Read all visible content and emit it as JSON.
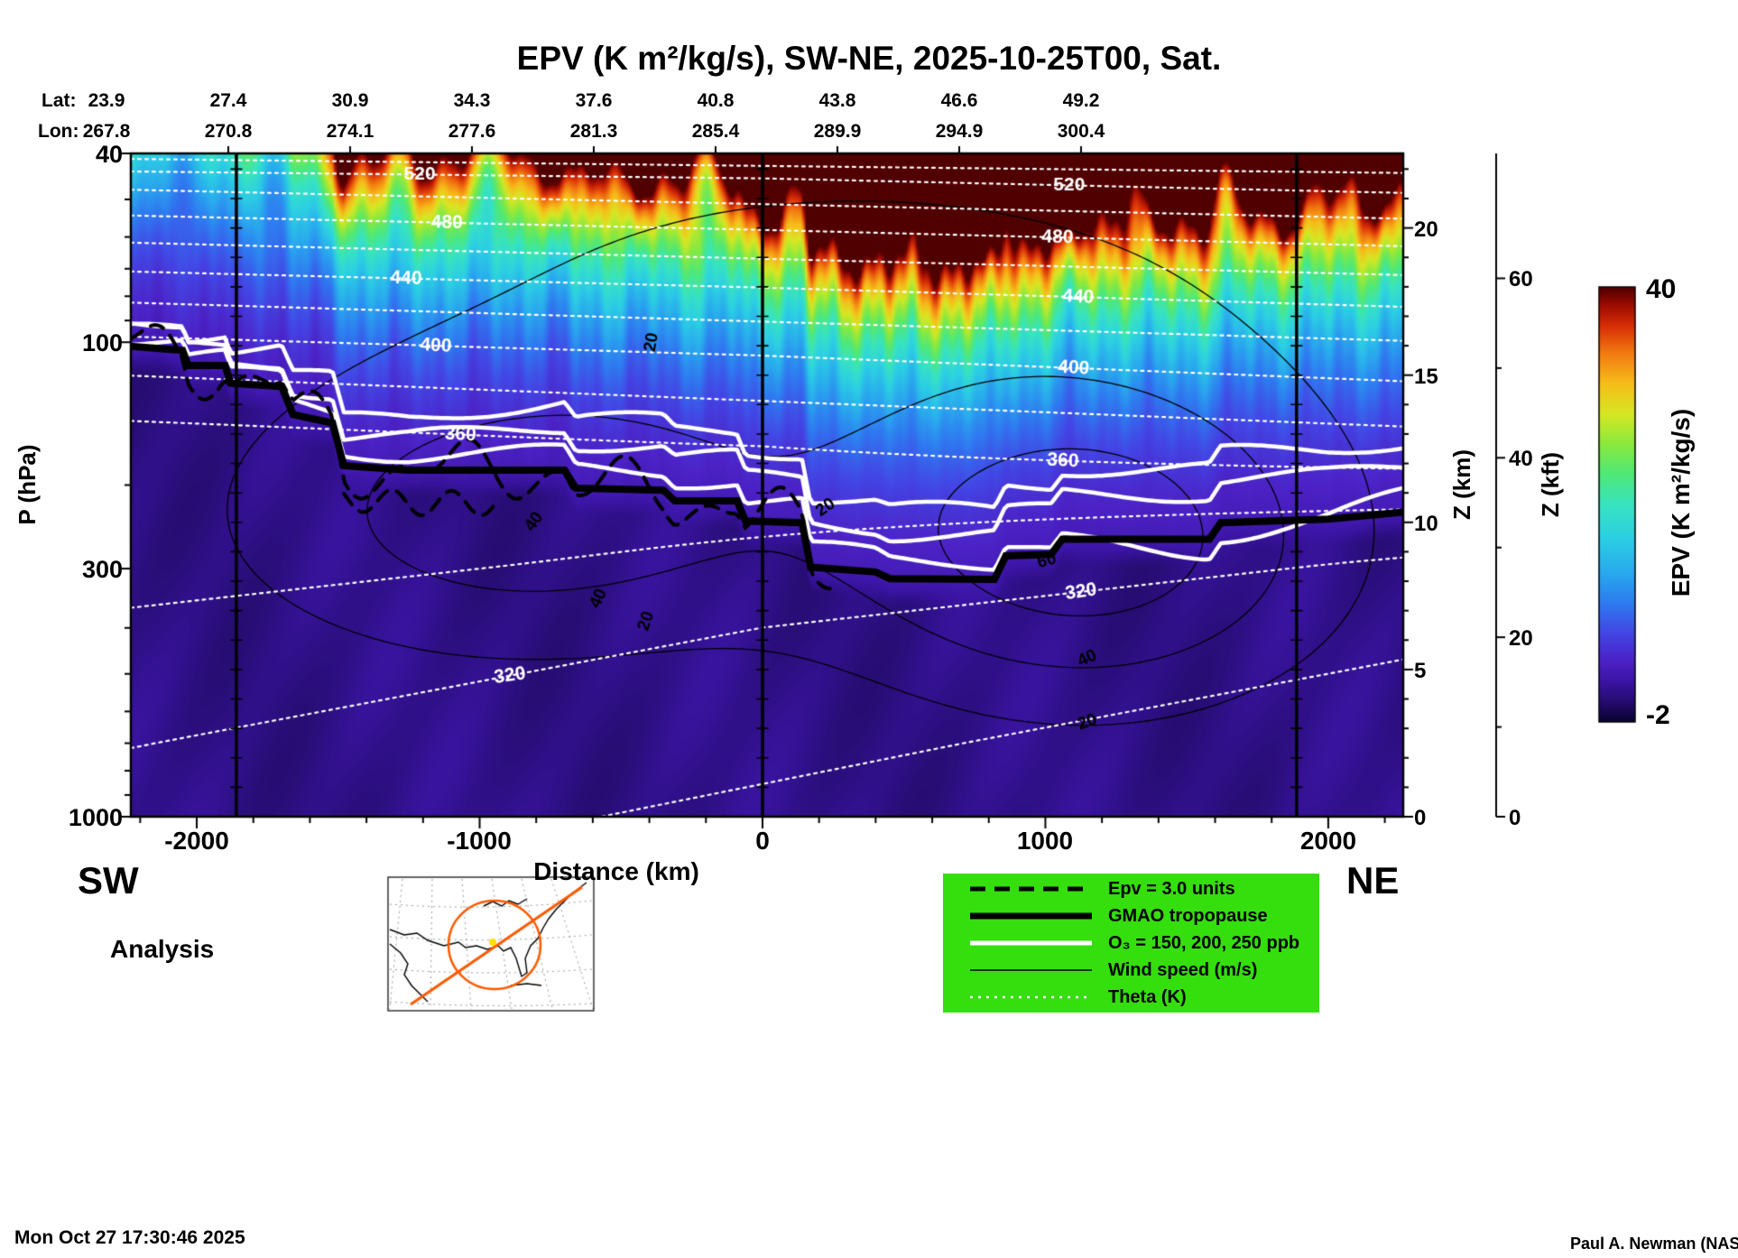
{
  "title": "EPV (K m²/kg/s), SW-NE, 2025-10-25T00, Sat.",
  "header": {
    "lat_label": "Lat:",
    "lon_label": "Lon:",
    "lats": [
      "23.9",
      "27.4",
      "30.9",
      "34.3",
      "37.6",
      "40.8",
      "43.8",
      "46.6",
      "49.2"
    ],
    "lons": [
      "267.8",
      "270.8",
      "274.1",
      "277.6",
      "281.3",
      "285.4",
      "289.9",
      "294.9",
      "300.4"
    ]
  },
  "axes": {
    "p_label": "P (hPa)",
    "p_ticks": [
      "40",
      "100",
      "300",
      "1000"
    ],
    "x_label": "Distance (km)",
    "x_ticks": [
      "-2000",
      "-1000",
      "0",
      "1000",
      "2000"
    ],
    "z_km_label": "Z (km)",
    "z_km_ticks": [
      "0",
      "5",
      "10",
      "15",
      "20"
    ],
    "z_kft_label": "Z (kft)",
    "z_kft_ticks": [
      "0",
      "20",
      "40",
      "60"
    ]
  },
  "colorbar": {
    "label": "EPV (K m²/kg/s)",
    "max_label": "40",
    "min_label": "-2"
  },
  "corners": {
    "sw": "SW",
    "ne": "NE"
  },
  "analysis_label": "Analysis",
  "legend": {
    "bg": "#35DE0D",
    "items": [
      {
        "style": "dashed-black",
        "label": "Epv = 3.0 units"
      },
      {
        "style": "thick-black",
        "label": "GMAO tropopause"
      },
      {
        "style": "thick-white",
        "label": "O₃ = 150, 200, 250 ppb"
      },
      {
        "style": "thin-black",
        "label": "Wind speed (m/s)"
      },
      {
        "style": "dotted-white",
        "label": "Theta (K)"
      }
    ]
  },
  "footer": {
    "timestamp": "Mon Oct 27 17:30:46 2025",
    "credit": "Paul A. Newman (NASA"
  },
  "chart_data": {
    "type": "heatmap",
    "title": "EPV (K m²/kg/s), SW-NE, 2025-10-25T00, Sat.",
    "analysis": "Analysis",
    "x_axis": {
      "label": "Distance (km)",
      "range_km": [
        -2233,
        2265
      ],
      "ticks": [
        -2000,
        -1000,
        0,
        1000,
        2000
      ],
      "minor_step_km": 200
    },
    "y_axis": {
      "label": "P (hPa)",
      "scale": "log",
      "range_hpa": [
        40,
        1000
      ],
      "ticks": [
        40,
        100,
        300,
        1000
      ],
      "minor_ticks": [
        50,
        60,
        70,
        80,
        90,
        200,
        400,
        500,
        600,
        700,
        800,
        900
      ]
    },
    "z_km_axis": {
      "label": "Z (km)",
      "ticks": [
        0,
        5,
        10,
        15,
        20
      ],
      "scale_height_km": 7
    },
    "z_kft_axis": {
      "label": "Z (kft)",
      "ticks": [
        0,
        20,
        40,
        60
      ],
      "minor_ticks": [
        10,
        30,
        50
      ]
    },
    "colorbar": {
      "label": "EPV (K m²/kg/s)",
      "min": -2,
      "max": 40,
      "stops": [
        {
          "t": 0.0,
          "c": "#0a0430"
        },
        {
          "t": 0.045,
          "c": "#250c6e"
        },
        {
          "t": 0.09,
          "c": "#3a14a2"
        },
        {
          "t": 0.14,
          "c": "#4c22c6"
        },
        {
          "t": 0.2,
          "c": "#4444e4"
        },
        {
          "t": 0.27,
          "c": "#2f79f0"
        },
        {
          "t": 0.34,
          "c": "#29a8ee"
        },
        {
          "t": 0.42,
          "c": "#2ccfe4"
        },
        {
          "t": 0.5,
          "c": "#38e4c0"
        },
        {
          "t": 0.57,
          "c": "#4fe878"
        },
        {
          "t": 0.64,
          "c": "#8ce93e"
        },
        {
          "t": 0.71,
          "c": "#d8e724"
        },
        {
          "t": 0.78,
          "c": "#f7bd1a"
        },
        {
          "t": 0.85,
          "c": "#f17911"
        },
        {
          "t": 0.91,
          "c": "#d92f08"
        },
        {
          "t": 0.96,
          "c": "#9b0b02"
        },
        {
          "t": 1.0,
          "c": "#500000"
        }
      ]
    },
    "transect": {
      "start": "SW",
      "end": "NE",
      "date": "2025-10-25T00",
      "lat": [
        23.9,
        27.4,
        30.9,
        34.3,
        37.6,
        40.8,
        43.8,
        46.6,
        49.2
      ],
      "lon": [
        267.8,
        270.8,
        274.1,
        277.6,
        281.3,
        285.4,
        289.9,
        294.9,
        300.4
      ]
    },
    "theta_contours": {
      "levels": [
        300,
        320,
        340,
        360,
        380,
        400,
        420,
        440,
        460,
        480,
        500,
        520,
        540
      ],
      "labeled_levels": [
        320,
        360,
        400,
        440,
        480,
        520
      ],
      "profile_lnp_theta": [
        [
          3.689,
          560
        ],
        [
          3.81,
          520
        ],
        [
          4.06,
          480
        ],
        [
          4.34,
          440
        ],
        [
          4.67,
          400
        ],
        [
          5.11,
          360
        ],
        [
          5.99,
          320
        ],
        [
          6.55,
          305
        ],
        [
          6.908,
          296
        ]
      ],
      "labels": [
        {
          "v": 520,
          "x_km": -1212,
          "rot": 0
        },
        {
          "v": 480,
          "x_km": -1116,
          "rot": 1
        },
        {
          "v": 440,
          "x_km": -1260,
          "rot": 2
        },
        {
          "v": 400,
          "x_km": -1155,
          "rot": 3
        },
        {
          "v": 360,
          "x_km": -1068,
          "rot": 3
        },
        {
          "v": 320,
          "x_km": -893,
          "rot": -8
        },
        {
          "v": 520,
          "x_km": 1084,
          "rot": 0
        },
        {
          "v": 480,
          "x_km": 1043,
          "rot": 1
        },
        {
          "v": 440,
          "x_km": 1116,
          "rot": 3
        },
        {
          "v": 400,
          "x_km": 1100,
          "rot": 3
        },
        {
          "v": 360,
          "x_km": 1062,
          "rot": 3
        },
        {
          "v": 320,
          "x_km": 1126,
          "rot": -8
        }
      ]
    },
    "wind_contours": {
      "levels": [
        20,
        40,
        60
      ],
      "jets": [
        {
          "x_km": -850,
          "p_hpa": 235,
          "amp_ms": 50,
          "sigma_x_km": 750,
          "sigma_lnp": 0.5
        },
        {
          "x_km": 1150,
          "p_hpa": 265,
          "amp_ms": 72,
          "sigma_x_km": 620,
          "sigma_lnp": 0.55
        },
        {
          "x_km": 300,
          "p_hpa": 74,
          "amp_ms": 24,
          "sigma_x_km": 1300,
          "sigma_lnp": 0.6
        }
      ],
      "labels": [
        {
          "v": 20,
          "x_km": -392,
          "p_hpa": 100,
          "rot": -80
        },
        {
          "v": 40,
          "x_km": -807,
          "p_hpa": 239,
          "rot": -55
        },
        {
          "v": 40,
          "x_km": -580,
          "p_hpa": 347,
          "rot": -65
        },
        {
          "v": 20,
          "x_km": -411,
          "p_hpa": 387,
          "rot": -72
        },
        {
          "v": 20,
          "x_km": 223,
          "p_hpa": 223,
          "rot": -35
        },
        {
          "v": 60,
          "x_km": 1005,
          "p_hpa": 289,
          "rot": -15
        },
        {
          "v": 40,
          "x_km": 1148,
          "p_hpa": 464,
          "rot": -25
        },
        {
          "v": 20,
          "x_km": 1148,
          "p_hpa": 632,
          "rot": -20
        }
      ]
    },
    "o3_contours_ppb": [
      150,
      200,
      250
    ],
    "epv_dashed_contour_units": 3.0,
    "epv_range": [
      -2,
      40
    ],
    "tropopause_profile_x_p": [
      [
        -2233,
        102
      ],
      [
        -2050,
        104
      ],
      [
        -2030,
        112
      ],
      [
        -1900,
        112
      ],
      [
        -1880,
        122
      ],
      [
        -1700,
        124
      ],
      [
        -1660,
        142
      ],
      [
        -1520,
        148
      ],
      [
        -1480,
        182
      ],
      [
        -1250,
        186
      ],
      [
        -700,
        186
      ],
      [
        -660,
        203
      ],
      [
        -350,
        205
      ],
      [
        -310,
        216
      ],
      [
        -90,
        216
      ],
      [
        -60,
        238
      ],
      [
        140,
        240
      ],
      [
        170,
        298
      ],
      [
        400,
        305
      ],
      [
        450,
        315
      ],
      [
        820,
        316
      ],
      [
        860,
        282
      ],
      [
        1020,
        280
      ],
      [
        1060,
        260
      ],
      [
        1580,
        260
      ],
      [
        1620,
        240
      ],
      [
        2000,
        236
      ],
      [
        2265,
        228
      ]
    ],
    "waypoint_lines_km": [
      -1860,
      0,
      1888
    ]
  }
}
